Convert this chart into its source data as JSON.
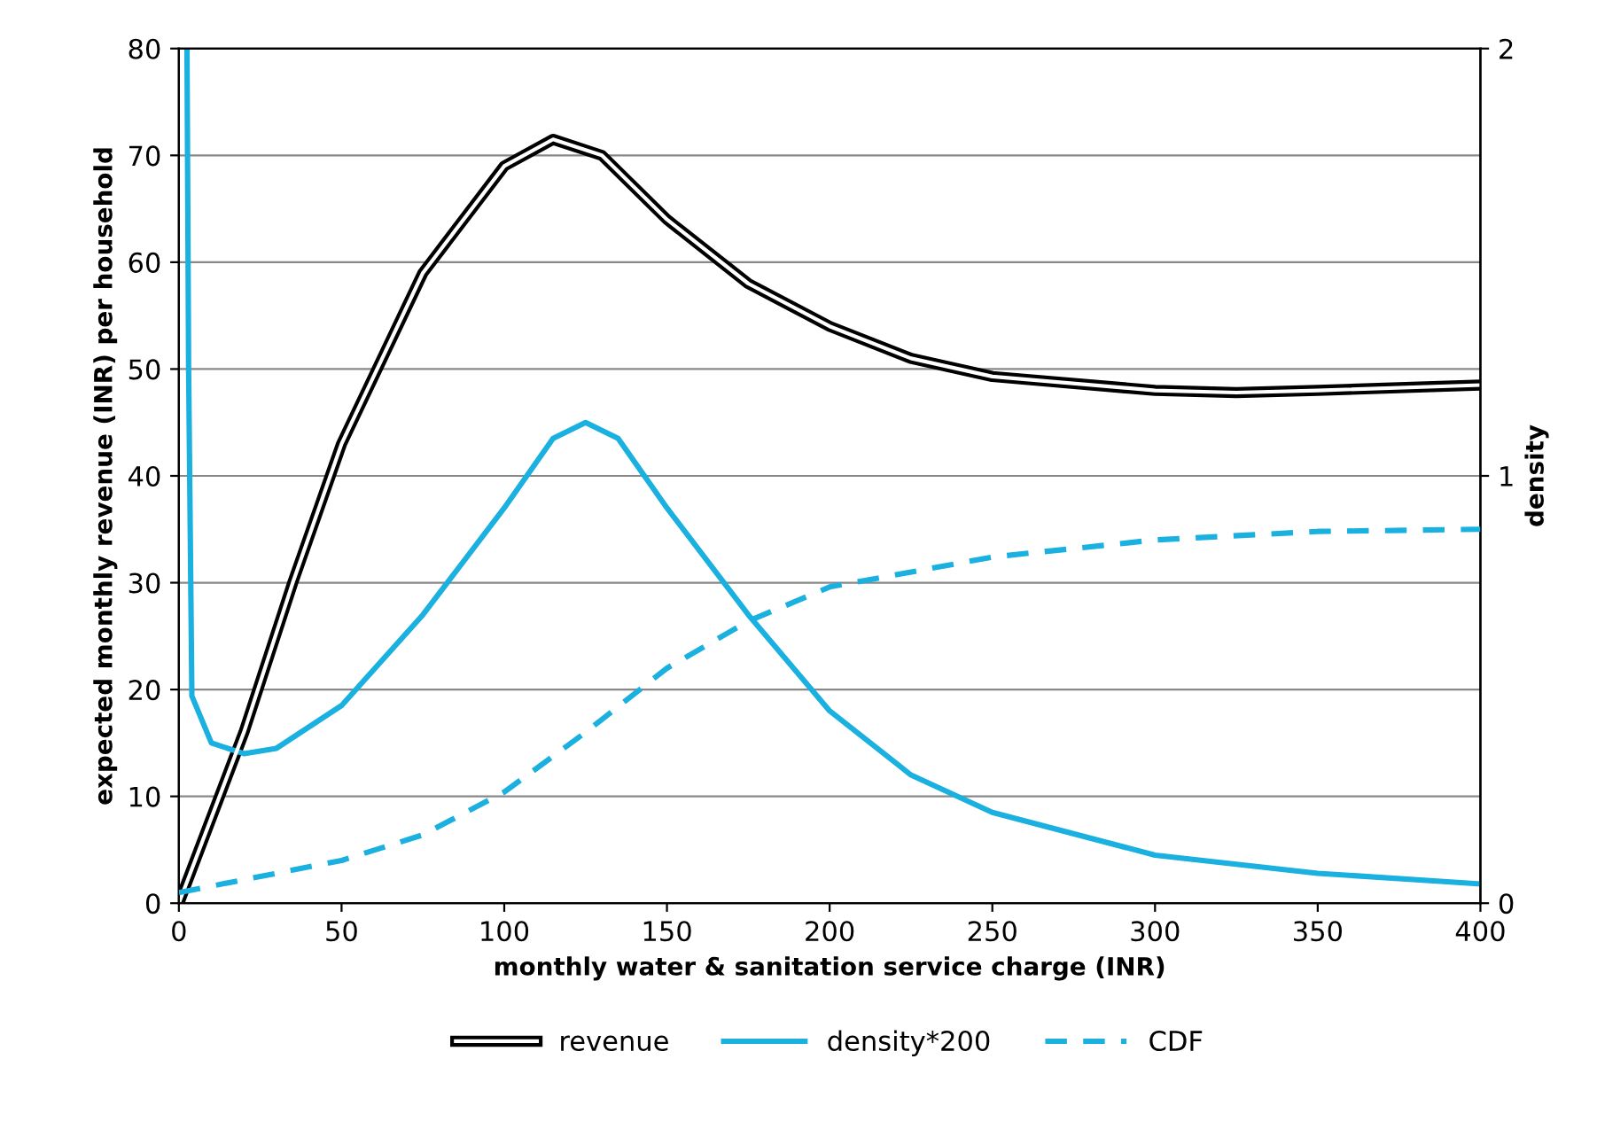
{
  "chart_data": {
    "type": "line",
    "xlabel": "monthly water & sanitation service charge (INR)",
    "ylabel": "expected monthly revenue (INR) per household",
    "y2label": "density",
    "xlim": [
      0,
      400
    ],
    "xticks": [
      0,
      50,
      100,
      150,
      200,
      250,
      300,
      350,
      400
    ],
    "ylim": [
      0,
      80
    ],
    "yticks": [
      0,
      10,
      20,
      30,
      40,
      50,
      60,
      70,
      80
    ],
    "y2lim": [
      0,
      2
    ],
    "y2ticks": [
      0,
      1,
      2
    ],
    "grid": "y",
    "legend": "bottom",
    "series": [
      {
        "name": "revenue",
        "color": "#000000",
        "x": [
          0,
          10,
          20,
          35,
          50,
          75,
          100,
          115,
          130,
          150,
          175,
          200,
          225,
          250,
          300,
          325,
          350,
          400
        ],
        "values": [
          0,
          8,
          16,
          30,
          43,
          59,
          69,
          71.5,
          70,
          64,
          58,
          54,
          51,
          49.3,
          48,
          47.8,
          48,
          48.5
        ]
      },
      {
        "name": "density*200",
        "color": "#1ab0e0",
        "line_style": "solid",
        "x": [
          2.5,
          3,
          4,
          10,
          20,
          30,
          50,
          75,
          100,
          115,
          125,
          135,
          150,
          175,
          200,
          225,
          250,
          300,
          350,
          400
        ],
        "values": [
          80,
          50,
          19.4,
          15,
          14,
          14.5,
          18.5,
          27,
          37,
          43.5,
          45,
          43.5,
          37,
          27,
          18,
          12,
          8.5,
          4.5,
          2.8,
          1.8
        ]
      },
      {
        "name": "CDF",
        "color": "#1ab0e0",
        "line_style": "dashed",
        "axis": "y2",
        "x": [
          0,
          50,
          75,
          100,
          125,
          150,
          175,
          200,
          250,
          300,
          350,
          400
        ],
        "values": [
          0.025,
          0.1,
          0.16,
          0.26,
          0.4,
          0.55,
          0.66,
          0.74,
          0.81,
          0.85,
          0.87,
          0.875
        ]
      }
    ]
  }
}
